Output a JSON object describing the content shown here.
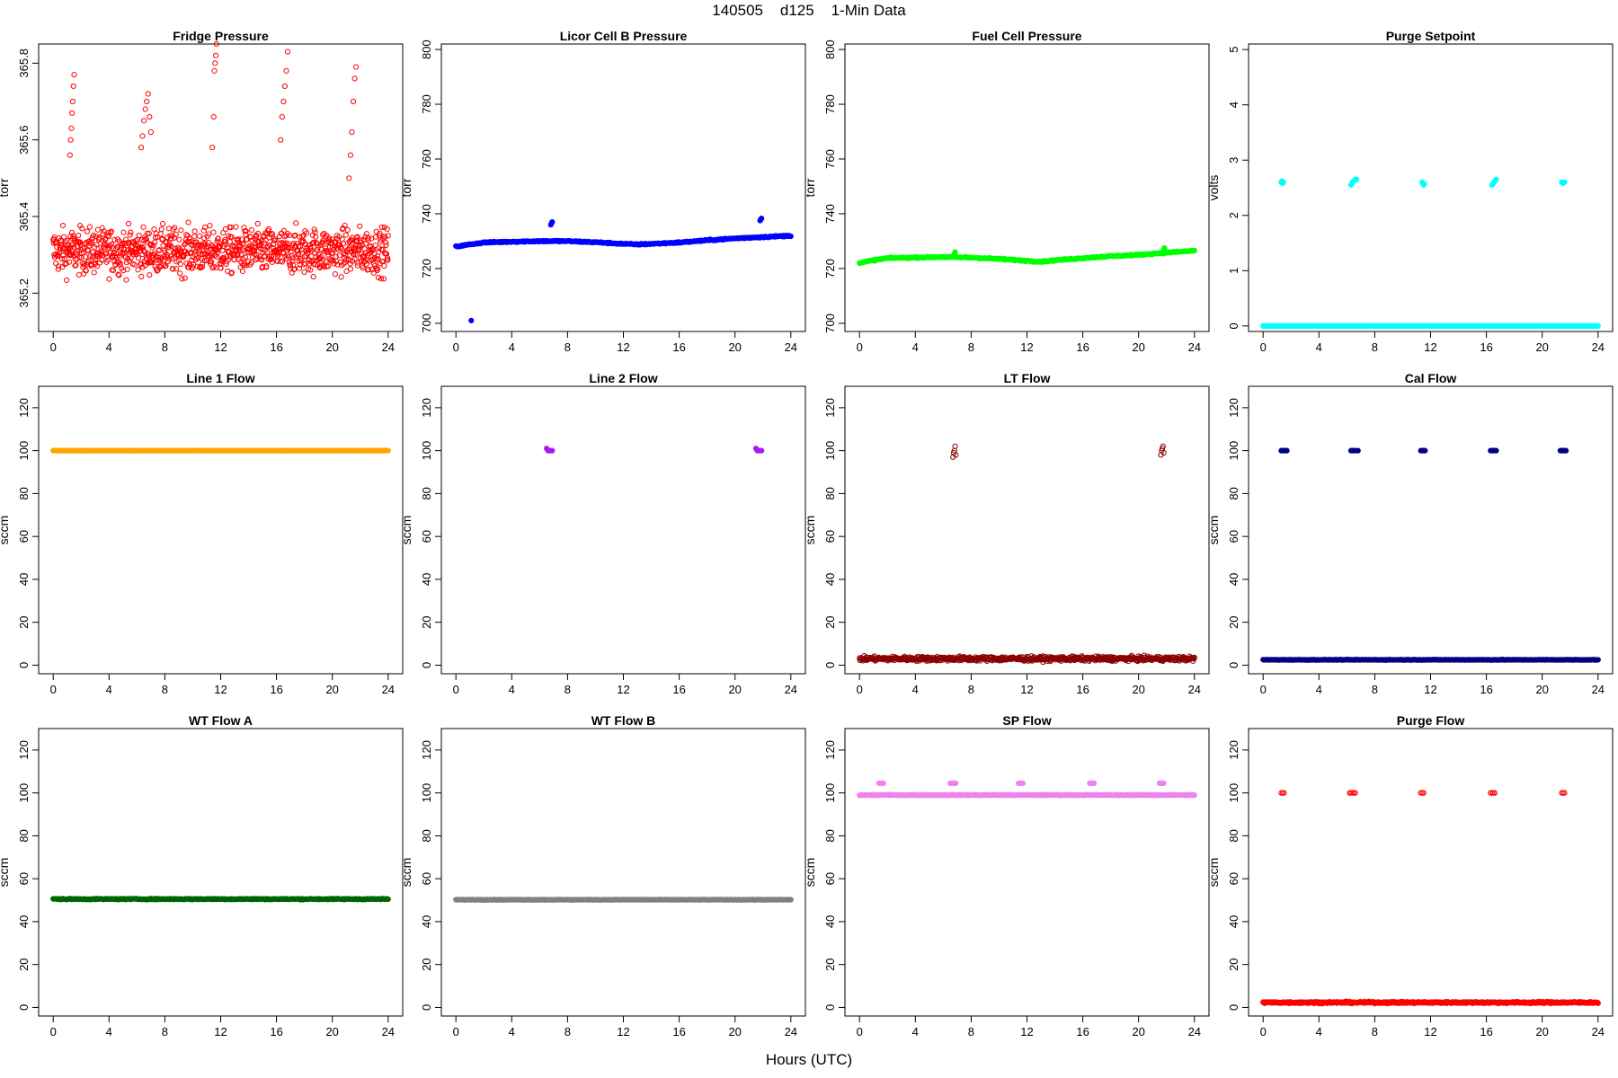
{
  "page": {
    "title": "140505    d125    1-Min Data",
    "xlabel": "Hours (UTC)"
  },
  "chart_data": [
    {
      "type": "scatter",
      "title": "Fridge Pressure",
      "ylabel": "torr",
      "xlim": [
        0,
        24
      ],
      "ylim": [
        365.1,
        365.85
      ],
      "xticks": [
        0,
        4,
        8,
        12,
        16,
        20,
        24
      ],
      "yticks": [
        365.2,
        365.4,
        365.6,
        365.8
      ],
      "color": "#ff0000",
      "filled": false,
      "series": [
        {
          "name": "noise",
          "kind": "noise",
          "center": 365.31,
          "spread": 0.1,
          "count": 1000
        },
        {
          "name": "spike1",
          "kind": "points",
          "x": [
            1.2,
            1.25,
            1.3,
            1.35,
            1.4,
            1.45,
            1.5
          ],
          "y": [
            365.56,
            365.6,
            365.63,
            365.67,
            365.7,
            365.74,
            365.77
          ]
        },
        {
          "name": "spike2",
          "kind": "points",
          "x": [
            6.3,
            6.4,
            6.5,
            6.6,
            6.7,
            6.8,
            6.9,
            7.0
          ],
          "y": [
            365.58,
            365.61,
            365.65,
            365.68,
            365.7,
            365.72,
            365.66,
            365.62
          ]
        },
        {
          "name": "spike3",
          "kind": "points",
          "x": [
            11.4,
            11.5,
            11.55,
            11.6,
            11.65,
            11.7
          ],
          "y": [
            365.58,
            365.66,
            365.78,
            365.8,
            365.82,
            365.85
          ]
        },
        {
          "name": "spike4",
          "kind": "points",
          "x": [
            16.3,
            16.4,
            16.5,
            16.6,
            16.7,
            16.8
          ],
          "y": [
            365.6,
            365.66,
            365.7,
            365.74,
            365.78,
            365.83
          ]
        },
        {
          "name": "spike5",
          "kind": "points",
          "x": [
            21.2,
            21.3,
            21.4,
            21.5,
            21.6,
            21.7
          ],
          "y": [
            365.5,
            365.56,
            365.62,
            365.7,
            365.76,
            365.79
          ]
        }
      ]
    },
    {
      "type": "scatter",
      "title": "Licor Cell B Pressure",
      "ylabel": "torr",
      "xlim": [
        0,
        24
      ],
      "ylim": [
        697,
        802
      ],
      "xticks": [
        0,
        4,
        8,
        12,
        16,
        20,
        24
      ],
      "yticks": [
        700,
        720,
        740,
        760,
        780,
        800
      ],
      "color": "#0000ff",
      "filled": true,
      "series": [
        {
          "name": "trend",
          "kind": "trend",
          "x": [
            0,
            1,
            2,
            4,
            6,
            8,
            10,
            12,
            13,
            14,
            16,
            18,
            20,
            22,
            24
          ],
          "y": [
            728,
            728.8,
            729.5,
            729.8,
            730,
            730,
            729.6,
            729,
            728.8,
            729,
            729.5,
            730.3,
            731,
            731.5,
            732
          ],
          "jitter": 0.4,
          "count": 420
        },
        {
          "name": "events",
          "kind": "points",
          "x": [
            1.1,
            6.8,
            6.85,
            6.9,
            21.8,
            21.85,
            21.9
          ],
          "y": [
            701,
            736,
            736.5,
            737,
            737.5,
            738,
            738.3
          ]
        }
      ]
    },
    {
      "type": "scatter",
      "title": "Fuel Cell Pressure",
      "ylabel": "torr",
      "xlim": [
        0,
        24
      ],
      "ylim": [
        697,
        802
      ],
      "xticks": [
        0,
        4,
        8,
        12,
        16,
        20,
        24
      ],
      "yticks": [
        700,
        720,
        740,
        760,
        780,
        800
      ],
      "color": "#00ff00",
      "filled": true,
      "series": [
        {
          "name": "trend",
          "kind": "trend",
          "x": [
            0,
            1,
            2,
            4,
            6,
            8,
            10,
            12,
            13,
            14,
            16,
            18,
            20,
            22,
            24
          ],
          "y": [
            722,
            723,
            723.8,
            724,
            724.2,
            724,
            723.5,
            722.8,
            722.5,
            723,
            723.8,
            724.5,
            725,
            725.8,
            726.5
          ],
          "jitter": 0.4,
          "count": 420
        },
        {
          "name": "events",
          "kind": "points",
          "x": [
            6.8,
            6.85,
            21.8,
            21.85
          ],
          "y": [
            725.5,
            726,
            727,
            727.5
          ]
        }
      ]
    },
    {
      "type": "scatter",
      "title": "Purge Setpoint",
      "ylabel": "volts",
      "xlim": [
        0,
        24
      ],
      "ylim": [
        -0.1,
        5.1
      ],
      "xticks": [
        0,
        4,
        8,
        12,
        16,
        20,
        24
      ],
      "yticks": [
        0,
        1,
        2,
        3,
        4,
        5
      ],
      "color": "#00ffff",
      "filled": true,
      "series": [
        {
          "name": "baseline",
          "kind": "flat",
          "y": 0,
          "jitter": 0,
          "count": 420
        },
        {
          "name": "events",
          "kind": "points",
          "x": [
            1.3,
            1.35,
            1.4,
            1.45,
            6.3,
            6.4,
            6.5,
            6.6,
            6.7,
            11.4,
            11.45,
            11.5,
            11.55,
            16.4,
            16.5,
            16.6,
            16.7,
            21.4,
            21.5,
            21.6
          ],
          "y": [
            2.6,
            2.62,
            2.58,
            2.6,
            2.55,
            2.6,
            2.62,
            2.65,
            2.65,
            2.6,
            2.58,
            2.55,
            2.57,
            2.55,
            2.58,
            2.62,
            2.65,
            2.6,
            2.58,
            2.6
          ]
        }
      ]
    },
    {
      "type": "scatter",
      "title": "Line 1 Flow",
      "ylabel": "sccm",
      "xlim": [
        0,
        24
      ],
      "ylim": [
        -4,
        130
      ],
      "xticks": [
        0,
        4,
        8,
        12,
        16,
        20,
        24
      ],
      "yticks": [
        0,
        20,
        40,
        60,
        80,
        100,
        120
      ],
      "color": "#ffa500",
      "filled": true,
      "series": [
        {
          "name": "flow",
          "kind": "flat",
          "y": 100,
          "jitter": 0.1,
          "count": 420
        }
      ]
    },
    {
      "type": "scatter",
      "title": "Line 2 Flow",
      "ylabel": "sccm",
      "xlim": [
        0,
        24
      ],
      "ylim": [
        -4,
        130
      ],
      "xticks": [
        0,
        4,
        8,
        12,
        16,
        20,
        24
      ],
      "yticks": [
        0,
        20,
        40,
        60,
        80,
        100,
        120
      ],
      "color": "#a020f0",
      "filled": true,
      "series": [
        {
          "name": "events",
          "kind": "points",
          "x": [
            6.5,
            6.6,
            6.7,
            6.8,
            6.9,
            21.5,
            21.6,
            21.7,
            21.8,
            21.9
          ],
          "y": [
            101,
            100,
            100,
            100,
            100,
            101,
            100,
            100,
            100,
            100
          ]
        }
      ]
    },
    {
      "type": "scatter",
      "title": "LT Flow",
      "ylabel": "sccm",
      "xlim": [
        0,
        24
      ],
      "ylim": [
        -4,
        130
      ],
      "xticks": [
        0,
        4,
        8,
        12,
        16,
        20,
        24
      ],
      "yticks": [
        0,
        20,
        40,
        60,
        80,
        100,
        120
      ],
      "color": "#8b0000",
      "filled": false,
      "series": [
        {
          "name": "baseline",
          "kind": "noise",
          "center": 3,
          "spread": 1.8,
          "count": 700
        },
        {
          "name": "events",
          "kind": "points",
          "x": [
            6.7,
            6.75,
            6.8,
            6.85,
            6.9,
            21.6,
            21.65,
            21.7,
            21.75,
            21.8
          ],
          "y": [
            97,
            99,
            100,
            102,
            98,
            98,
            100,
            101,
            102,
            99
          ]
        }
      ]
    },
    {
      "type": "scatter",
      "title": "Cal Flow",
      "ylabel": "sccm",
      "xlim": [
        0,
        24
      ],
      "ylim": [
        -4,
        130
      ],
      "xticks": [
        0,
        4,
        8,
        12,
        16,
        20,
        24
      ],
      "yticks": [
        0,
        20,
        40,
        60,
        80,
        100,
        120
      ],
      "color": "#000080",
      "filled": true,
      "series": [
        {
          "name": "baseline",
          "kind": "flat",
          "y": 2.5,
          "jitter": 0.2,
          "count": 420
        },
        {
          "name": "events",
          "kind": "points",
          "x": [
            1.3,
            1.4,
            1.5,
            1.6,
            1.7,
            6.3,
            6.4,
            6.5,
            6.6,
            6.8,
            11.3,
            11.4,
            11.5,
            11.6,
            16.3,
            16.4,
            16.5,
            16.6,
            16.7,
            21.3,
            21.4,
            21.5,
            21.6,
            21.7
          ],
          "y": [
            100,
            100,
            100,
            100,
            100,
            100,
            100,
            100,
            100,
            100,
            100,
            100,
            100,
            100,
            100,
            100,
            100,
            100,
            100,
            100,
            100,
            100,
            100,
            100
          ]
        }
      ]
    },
    {
      "type": "scatter",
      "title": "WT Flow A",
      "ylabel": "sccm",
      "xlim": [
        0,
        24
      ],
      "ylim": [
        -4,
        130
      ],
      "xticks": [
        0,
        4,
        8,
        12,
        16,
        20,
        24
      ],
      "yticks": [
        0,
        20,
        40,
        60,
        80,
        100,
        120
      ],
      "color": "#006400",
      "filled": true,
      "series": [
        {
          "name": "flow",
          "kind": "flat",
          "y": 50.5,
          "jitter": 0.4,
          "count": 420
        }
      ]
    },
    {
      "type": "scatter",
      "title": "WT Flow B",
      "ylabel": "sccm",
      "xlim": [
        0,
        24
      ],
      "ylim": [
        -4,
        130
      ],
      "xticks": [
        0,
        4,
        8,
        12,
        16,
        20,
        24
      ],
      "yticks": [
        0,
        20,
        40,
        60,
        80,
        100,
        120
      ],
      "color": "#808080",
      "filled": true,
      "series": [
        {
          "name": "flow",
          "kind": "flat",
          "y": 50.2,
          "jitter": 0.2,
          "count": 420
        }
      ]
    },
    {
      "type": "scatter",
      "title": "SP Flow",
      "ylabel": "sccm",
      "xlim": [
        0,
        24
      ],
      "ylim": [
        -4,
        130
      ],
      "xticks": [
        0,
        4,
        8,
        12,
        16,
        20,
        24
      ],
      "yticks": [
        0,
        20,
        40,
        60,
        80,
        100,
        120
      ],
      "color": "#ee82ee",
      "filled": true,
      "series": [
        {
          "name": "baseline",
          "kind": "flat",
          "y": 99,
          "jitter": 0.3,
          "count": 420
        },
        {
          "name": "events",
          "kind": "points",
          "x": [
            1.4,
            1.5,
            1.6,
            1.7,
            6.5,
            6.6,
            6.7,
            6.8,
            6.9,
            11.4,
            11.5,
            11.6,
            11.7,
            16.5,
            16.6,
            16.7,
            16.8,
            21.5,
            21.6,
            21.7,
            21.8
          ],
          "y": [
            104.5,
            104.5,
            104.5,
            104.5,
            104.5,
            104.5,
            104.5,
            104.5,
            104.5,
            104.5,
            104.5,
            104.5,
            104.5,
            104.5,
            104.5,
            104.5,
            104.5,
            104.5,
            104.5,
            104.5,
            104.5
          ]
        }
      ]
    },
    {
      "type": "scatter",
      "title": "Purge Flow",
      "ylabel": "sccm",
      "xlim": [
        0,
        24
      ],
      "ylim": [
        -4,
        130
      ],
      "xticks": [
        0,
        4,
        8,
        12,
        16,
        20,
        24
      ],
      "yticks": [
        0,
        20,
        40,
        60,
        80,
        100,
        120
      ],
      "color": "#ff0000",
      "filled": false,
      "series": [
        {
          "name": "baseline",
          "kind": "noise",
          "center": 2.3,
          "spread": 0.7,
          "count": 600
        },
        {
          "name": "events",
          "kind": "points",
          "x": [
            1.3,
            1.4,
            1.5,
            6.2,
            6.3,
            6.4,
            6.5,
            6.6,
            11.3,
            11.4,
            11.5,
            16.3,
            16.4,
            16.5,
            16.6,
            21.4,
            21.5,
            21.6
          ],
          "y": [
            100,
            100,
            100,
            100,
            100,
            100,
            100,
            100,
            100,
            100,
            100,
            100,
            100,
            100,
            100,
            100,
            100,
            100
          ]
        }
      ]
    }
  ]
}
